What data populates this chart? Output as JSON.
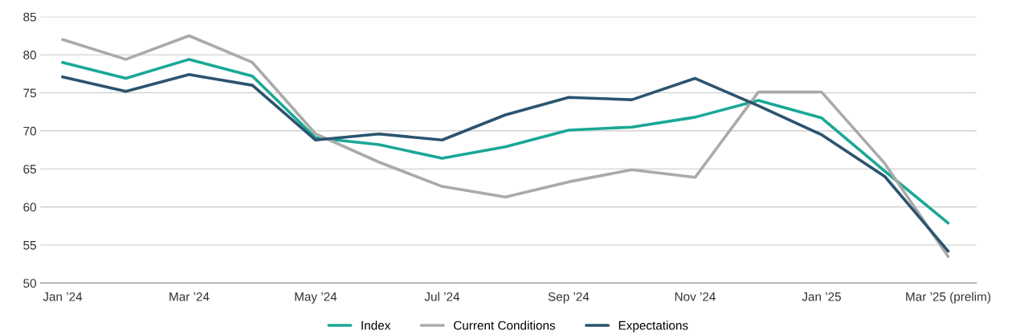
{
  "chart_data": {
    "type": "line",
    "categories": [
      "Jan ’24",
      null,
      "Mar ’24",
      null,
      "May ’24",
      null,
      "Jul ’24",
      null,
      "Sep ’24",
      null,
      "Nov ’24",
      null,
      "Jan ’25",
      null,
      "Mar ’25 (prelim)"
    ],
    "series": [
      {
        "name": "Index",
        "color": "#1aa896",
        "values": [
          79.0,
          76.9,
          79.4,
          77.2,
          69.1,
          68.2,
          66.4,
          67.9,
          70.1,
          70.5,
          71.8,
          74.0,
          71.7,
          64.7,
          57.9
        ]
      },
      {
        "name": "Current Conditions",
        "color": "#aaaaaa",
        "values": [
          82.0,
          79.4,
          82.5,
          79.0,
          69.6,
          65.9,
          62.7,
          61.3,
          63.3,
          64.9,
          63.9,
          75.1,
          75.1,
          65.7,
          53.5
        ]
      },
      {
        "name": "Expectations",
        "color": "#2b5470",
        "values": [
          77.1,
          75.2,
          77.4,
          76.0,
          68.8,
          69.6,
          68.8,
          72.1,
          74.4,
          74.1,
          76.9,
          73.3,
          69.5,
          64.0,
          54.2
        ]
      }
    ],
    "ylim": [
      50,
      85
    ],
    "yticks": [
      50,
      55,
      60,
      65,
      70,
      75,
      80,
      85
    ],
    "grid": "y",
    "legend": "bottom",
    "marker": "none",
    "line_style": "solid"
  }
}
